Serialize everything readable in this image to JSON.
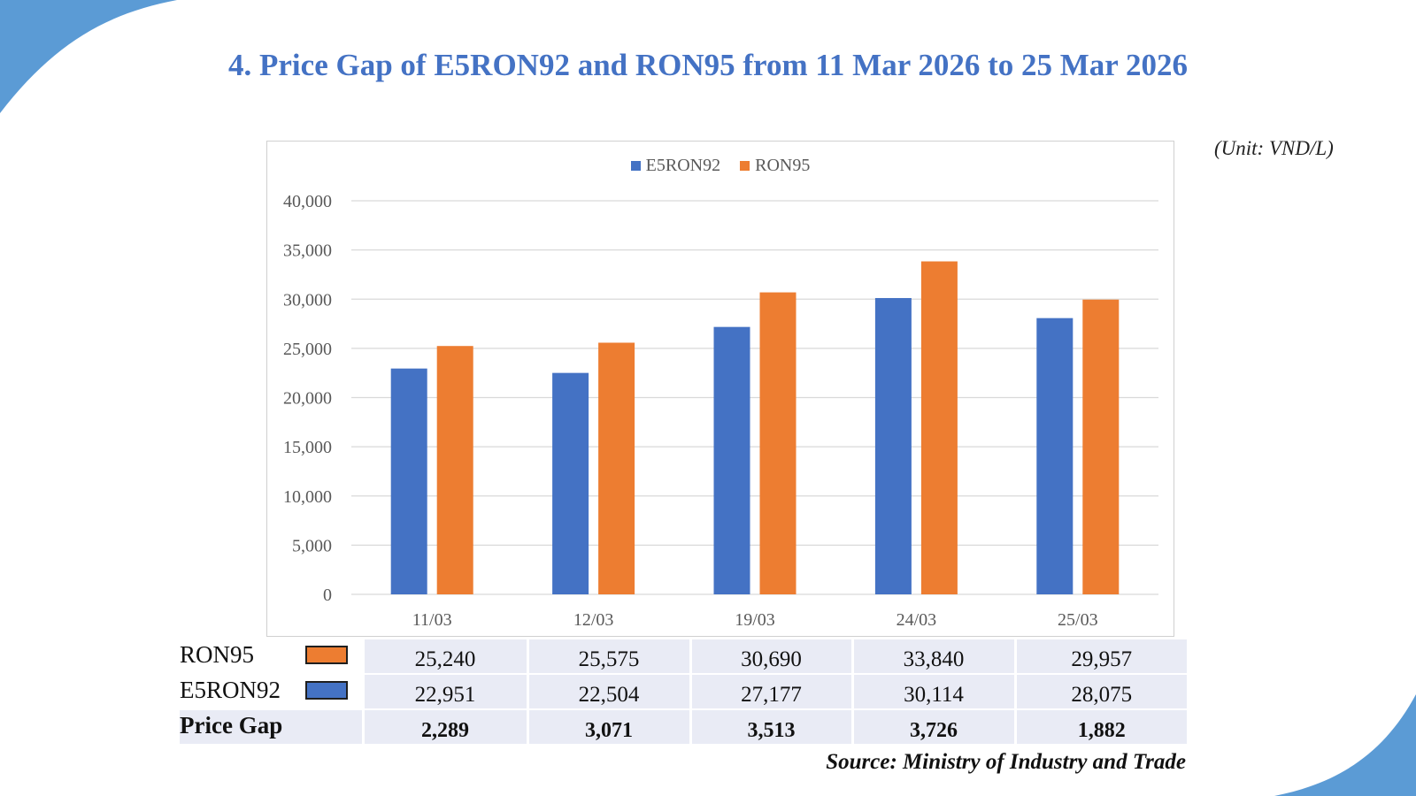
{
  "title": "4. Price Gap of E5RON92 and RON95 from 11 Mar 2026 to 25 Mar 2026",
  "unit": "(Unit: VND/L)",
  "source": "Source: Ministry of Industry and Trade",
  "colors": {
    "accent": "#4472c4",
    "e5ron92": "#4472c4",
    "ron95": "#ed7d31",
    "corner": "#5b9bd5",
    "table_bg": "#e9ebf5"
  },
  "legend": [
    {
      "label": "E5RON92",
      "color": "#4472c4"
    },
    {
      "label": "RON95",
      "color": "#ed7d31"
    }
  ],
  "chart_data": {
    "type": "bar",
    "categories": [
      "11/03",
      "12/03",
      "19/03",
      "24/03",
      "25/03"
    ],
    "series": [
      {
        "name": "E5RON92",
        "values": [
          22951,
          22504,
          27177,
          30114,
          28075
        ],
        "color": "#4472c4"
      },
      {
        "name": "RON95",
        "values": [
          25240,
          25575,
          30690,
          33840,
          29957
        ],
        "color": "#ed7d31"
      }
    ],
    "ylim": [
      0,
      40000
    ],
    "yticks": [
      0,
      5000,
      10000,
      15000,
      20000,
      25000,
      30000,
      35000,
      40000
    ],
    "ytick_labels": [
      "0",
      "5,000",
      "10,000",
      "15,000",
      "20,000",
      "25,000",
      "30,000",
      "35,000",
      "40,000"
    ],
    "grid": true,
    "legend_position": "top-center",
    "title": "",
    "xlabel": "",
    "ylabel": ""
  },
  "table": {
    "rows": [
      {
        "label": "RON95",
        "swatch_color": "#ed7d31",
        "values": [
          "25,240",
          "25,575",
          "30,690",
          "33,840",
          "29,957"
        ]
      },
      {
        "label": "E5RON92",
        "swatch_color": "#4472c4",
        "values": [
          "22,951",
          "22,504",
          "27,177",
          "30,114",
          "28,075"
        ]
      },
      {
        "label": "Price Gap",
        "values": [
          "2,289",
          "3,071",
          "3,513",
          "3,726",
          "1,882"
        ]
      }
    ]
  }
}
